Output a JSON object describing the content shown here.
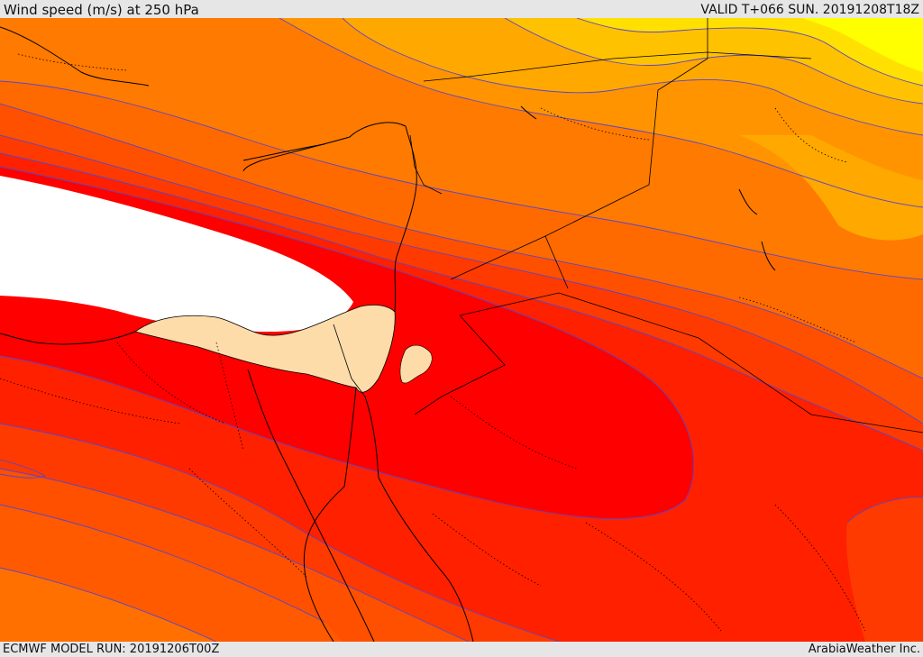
{
  "header": {
    "title": "Wind speed (m/s) at 250 hPa",
    "valid_time": "VALID T+066 SUN. 20191208T18Z"
  },
  "footer": {
    "model_run": "ECMWF MODEL RUN: 20191206T00Z",
    "credit": "ArabiaWeather Inc."
  },
  "map": {
    "colors": {
      "white_core": "#ffffff",
      "red_core": "#ff0000",
      "red": "#ff2000",
      "red_orange": "#ff4000",
      "orange_red": "#ff5500",
      "orange": "#ff7000",
      "dark_orange": "#ff9000",
      "amber": "#ffa800",
      "gold": "#ffc000",
      "yellow": "#ffe000",
      "bright_yellow": "#ffff00",
      "land_tan": "#fddcaa",
      "contour": "#5a46c8",
      "border": "#000000"
    }
  }
}
